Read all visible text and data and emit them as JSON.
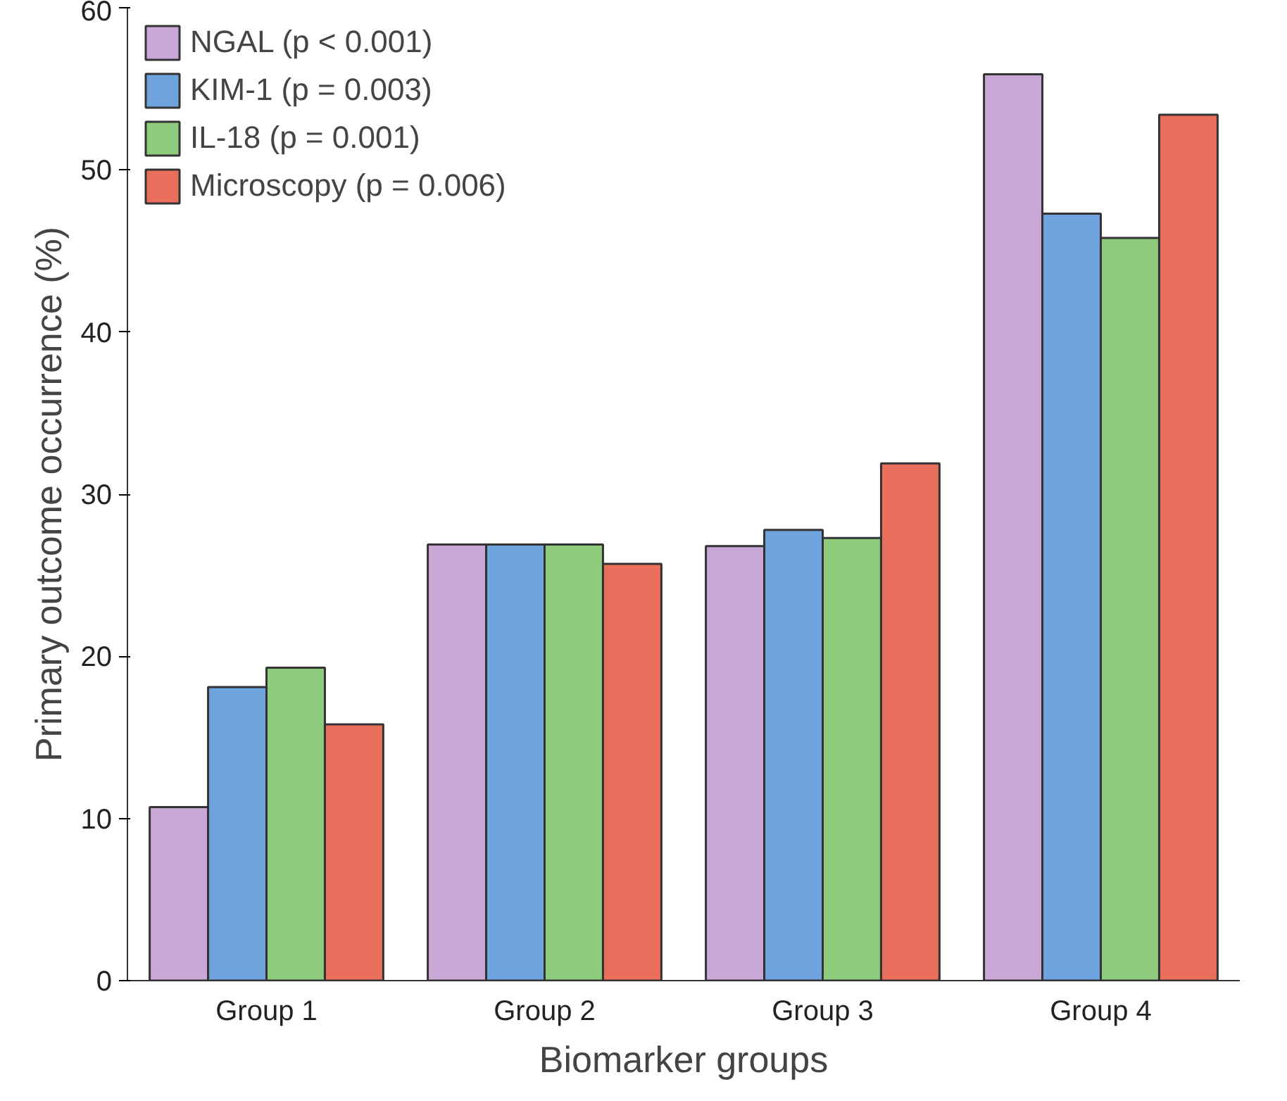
{
  "chart_data": {
    "type": "bar",
    "xlabel": "Biomarker groups",
    "ylabel": "Primary outcome occurrence (%)",
    "categories": [
      "Group 1",
      "Group 2",
      "Group 3",
      "Group 4"
    ],
    "series": [
      {
        "name": "NGAL (p < 0.001)",
        "color": "#c9a8d8",
        "values": [
          10.7,
          26.9,
          26.8,
          55.9
        ]
      },
      {
        "name": "KIM-1 (p = 0.003)",
        "color": "#6fa3de",
        "values": [
          18.1,
          26.9,
          27.8,
          47.3
        ]
      },
      {
        "name": "IL-18 (p = 0.001)",
        "color": "#8fcb7c",
        "values": [
          19.3,
          26.9,
          27.3,
          45.8
        ]
      },
      {
        "name": "Microscopy (p = 0.006)",
        "color": "#ea6e5c",
        "values": [
          15.8,
          25.7,
          31.9,
          53.4
        ]
      }
    ],
    "ylim": [
      0,
      60
    ],
    "yticks": [
      0,
      10,
      20,
      30,
      40,
      50,
      60
    ],
    "grid": false,
    "legend": "top left"
  }
}
